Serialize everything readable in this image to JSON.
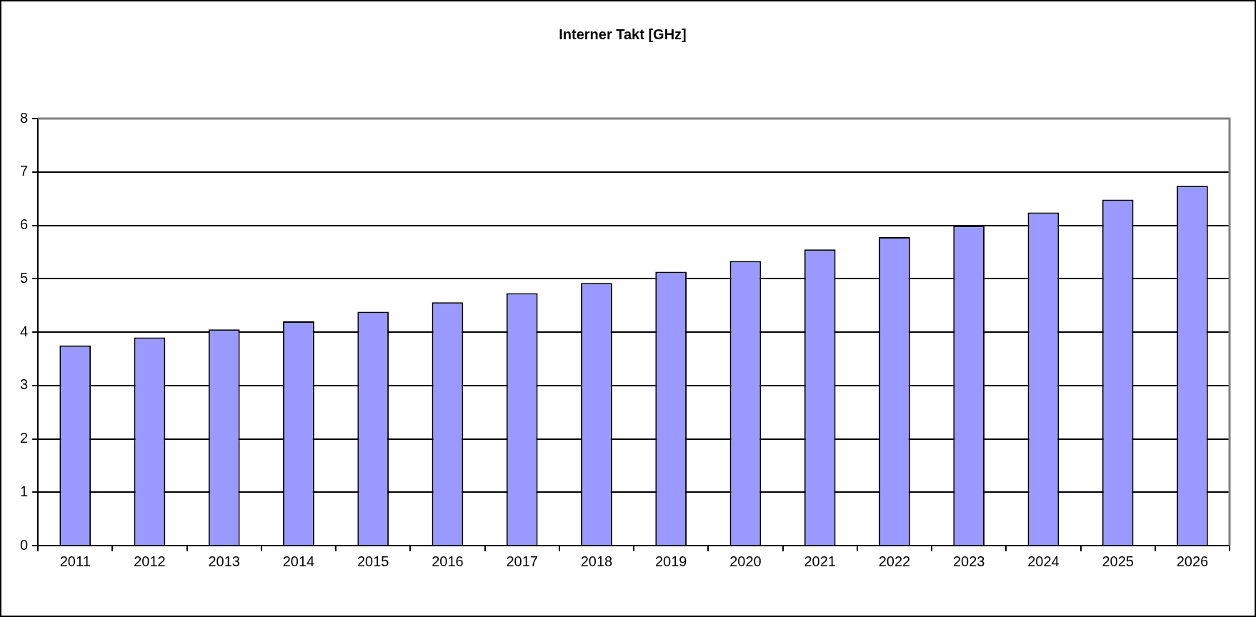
{
  "chart_data": {
    "type": "bar",
    "title": "Interner Takt [GHz]",
    "categories": [
      "2011",
      "2012",
      "2013",
      "2014",
      "2015",
      "2016",
      "2017",
      "2018",
      "2019",
      "2020",
      "2021",
      "2022",
      "2023",
      "2024",
      "2025",
      "2026"
    ],
    "values": [
      3.75,
      3.9,
      4.05,
      4.2,
      4.38,
      4.56,
      4.73,
      4.92,
      5.13,
      5.33,
      5.55,
      5.78,
      5.99,
      6.24,
      6.48,
      6.74
    ],
    "color": "#9999ff",
    "ylim": [
      0,
      8
    ],
    "yticks": [
      0,
      1,
      2,
      3,
      4,
      5,
      6,
      7,
      8
    ],
    "grid": "y",
    "legend": false
  }
}
